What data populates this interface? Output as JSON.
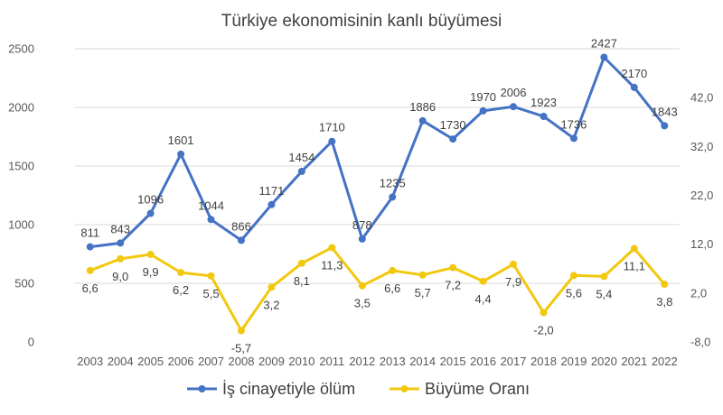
{
  "chart_data": {
    "type": "line",
    "title": "Türkiye ekonomisinin kanlı büyümesi",
    "categories": [
      "2003",
      "2004",
      "2005",
      "2006",
      "2007",
      "2008",
      "2009",
      "2010",
      "2011",
      "2012",
      "2013",
      "2014",
      "2015",
      "2016",
      "2017",
      "2018",
      "2019",
      "2020",
      "2021",
      "2022"
    ],
    "series": [
      {
        "name": "İş cinayetiyle ölüm",
        "axis": "left",
        "color": "#4472c4",
        "values": [
          811,
          843,
          1096,
          1601,
          1044,
          866,
          1171,
          1454,
          1710,
          878,
          1235,
          1886,
          1730,
          1970,
          2006,
          1923,
          1736,
          2427,
          2170,
          1843
        ],
        "labels": [
          "811",
          "843",
          "1096",
          "1601",
          "1044",
          "866",
          "1171",
          "1454",
          "1710",
          "878",
          "1235",
          "1886",
          "1730",
          "1970",
          "2006",
          "1923",
          "1736",
          "2427",
          "2170",
          "1843"
        ]
      },
      {
        "name": "Büyüme Oranı",
        "axis": "right",
        "color": "#f2c80f",
        "values": [
          6.6,
          9.0,
          9.9,
          6.2,
          5.5,
          -5.7,
          3.2,
          8.1,
          11.3,
          3.5,
          6.6,
          5.7,
          7.2,
          4.4,
          7.9,
          -2.0,
          5.6,
          5.4,
          11.1,
          3.8
        ],
        "labels": [
          "6,6",
          "9,0",
          "9,9",
          "6,2",
          "5,5",
          "-5,7",
          "3,2",
          "8,1",
          "11,3",
          "3,5",
          "6,6",
          "5,7",
          "7,2",
          "4,4",
          "7,9",
          "-2,0",
          "5,6",
          "5,4",
          "11,1",
          "3,8"
        ]
      }
    ],
    "y_left": {
      "min": 0,
      "max": 2500,
      "ticks": [
        "0",
        "500",
        "1000",
        "1500",
        "2000",
        "2500"
      ]
    },
    "y_right": {
      "min": -8,
      "max": 52,
      "ticks": [
        -8,
        2,
        12,
        22,
        32,
        42
      ],
      "tick_labels": [
        "-8,0",
        "2,0",
        "12,0",
        "22,0",
        "32,0",
        "42,0"
      ]
    },
    "grid": true,
    "legend": "bottom"
  }
}
